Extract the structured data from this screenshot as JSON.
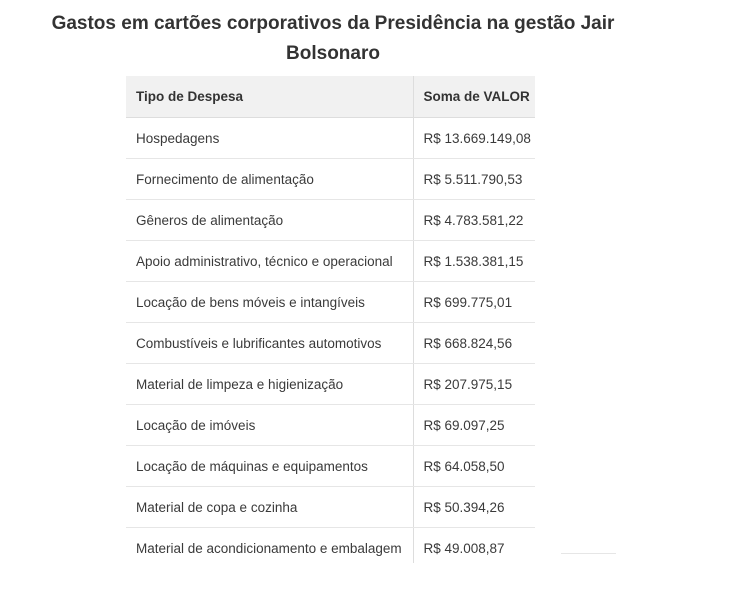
{
  "title": "Gastos em cartões corporativos da Presidência na gestão Jair Bolsonaro",
  "table": {
    "headers": [
      "Tipo de Despesa",
      "Soma de VALOR"
    ],
    "rows": [
      [
        "Hospedagens",
        "R$ 13.669.149,08"
      ],
      [
        "Fornecimento de alimentação",
        "R$ 5.511.790,53"
      ],
      [
        "Gêneros de alimentação",
        "R$ 4.783.581,22"
      ],
      [
        "Apoio administrativo, técnico e operacional",
        "R$ 1.538.381,15"
      ],
      [
        "Locação de bens móveis e intangíveis",
        "R$ 699.775,01"
      ],
      [
        "Combustíveis e lubrificantes automotivos",
        "R$ 668.824,56"
      ],
      [
        "Material de limpeza e higienização",
        "R$ 207.975,15"
      ],
      [
        "Locação de imóveis",
        "R$ 69.097,25"
      ],
      [
        "Locação de máquinas e equipamentos",
        "R$ 64.058,50"
      ],
      [
        "Material de copa e cozinha",
        "R$ 50.394,26"
      ],
      [
        "Material de acondicionamento e embalagem",
        "R$ 49.008,87"
      ]
    ]
  }
}
